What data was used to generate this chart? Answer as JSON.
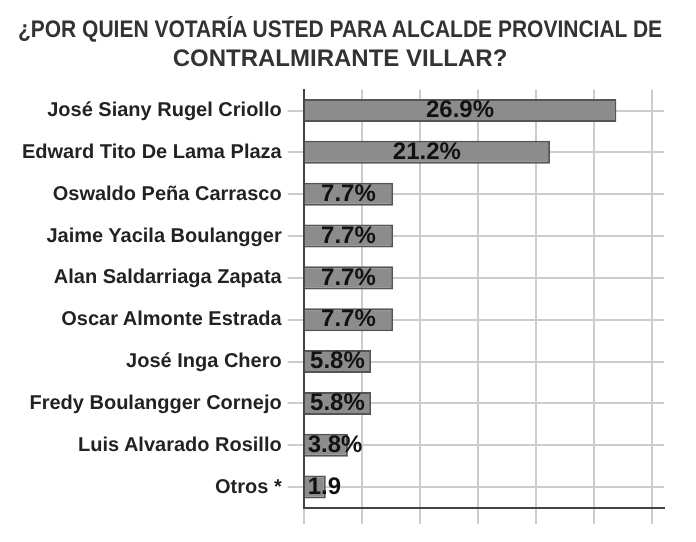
{
  "chart_data": {
    "type": "bar",
    "orientation": "horizontal",
    "title": "¿POR QUIEN VOTARÍA USTED PARA ALCALDE PROVINCIAL DE CONTRALMIRANTE VILLAR?",
    "categories": [
      "José Siany Rugel Criollo",
      "Edward Tito De Lama Plaza",
      "Oswaldo Peña Carrasco",
      "Jaime Yacila Boulangger",
      "Alan Saldarriaga Zapata",
      "Oscar Almonte Estrada",
      "José Inga Chero",
      "Fredy Boulangger Cornejo",
      "Luis Alvarado Rosillo",
      "Otros *"
    ],
    "values": [
      26.9,
      21.2,
      7.7,
      7.7,
      7.7,
      7.7,
      5.8,
      5.8,
      3.8,
      1.9
    ],
    "value_labels": [
      "26.9%",
      "21.2%",
      "7.7%",
      "7.7%",
      "7.7%",
      "7.7%",
      "5.8%",
      "5.8%",
      "3.8%",
      "1.9"
    ],
    "color": "#8c8c8c",
    "xlim": [
      0,
      31
    ],
    "xticks": [
      {
        "value": 0,
        "label": null
      },
      {
        "value": 5,
        "label": null
      },
      {
        "value": 10,
        "label": null
      },
      {
        "value": 15,
        "label": null
      },
      {
        "value": 20,
        "label": null
      },
      {
        "value": 25,
        "label": null
      },
      {
        "value": 30,
        "label": null
      }
    ],
    "tick_labels": "y",
    "grid": true,
    "legend": false
  }
}
